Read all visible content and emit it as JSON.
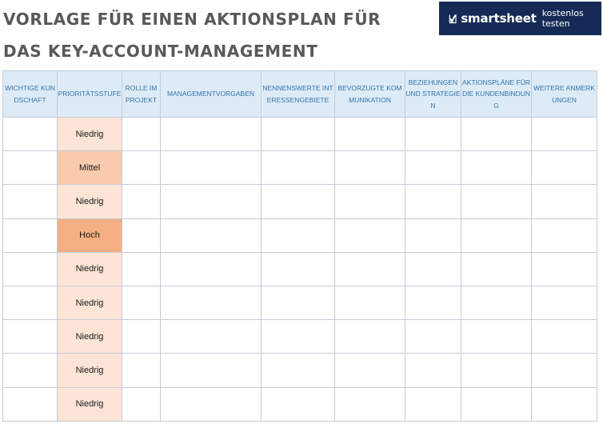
{
  "title": {
    "line1": "VORLAGE FÜR EINEN AKTIONSPLAN FÜR",
    "line2": "DAS KEY-ACCOUNT-MANAGEMENT"
  },
  "brand": {
    "name": "smartsheet",
    "cta": "kostenlos testen",
    "background": "#152a55"
  },
  "table": {
    "columns": [
      "WICHTIGE KUNDSCHAFT",
      "PRIORITÄTSSTUFE",
      "ROLLE IM PROJEKT",
      "MANAGEMENTVORGABEN",
      "NENNENSWERTE INTERESSENGEBIETE",
      "BEVORZUGTE KOMMUNIKATION",
      "BEZIEHUNGEN UND STRATEGIEN",
      "AKTIONSPLÄNE FÜR DIE KUNDENBINDUNG",
      "WEITERE ANMERKUNGEN"
    ],
    "rows": [
      {
        "priority": "Niedrig"
      },
      {
        "priority": "Mittel"
      },
      {
        "priority": "Niedrig"
      },
      {
        "priority": "Hoch"
      },
      {
        "priority": "Niedrig"
      },
      {
        "priority": "Niedrig"
      },
      {
        "priority": "Niedrig"
      },
      {
        "priority": "Niedrig"
      },
      {
        "priority": "Niedrig"
      }
    ],
    "priority_colors": {
      "Niedrig": "#fce4d6",
      "Mittel": "#f8cbad",
      "Hoch": "#f4b084"
    },
    "header_background": "#ddebf7",
    "header_text_color": "#3373a8"
  }
}
